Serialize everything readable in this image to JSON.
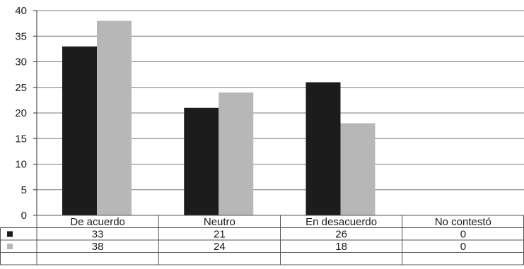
{
  "chart_data": {
    "type": "bar",
    "categories": [
      "De acuerdo",
      "Neutro",
      "En desacuerdo",
      "No contestó"
    ],
    "series": [
      {
        "values": [
          33,
          21,
          26,
          0
        ],
        "color": "#1c1c1c"
      },
      {
        "values": [
          38,
          24,
          18,
          0
        ],
        "color": "#b7b7b7"
      }
    ],
    "ylim": [
      0,
      40
    ],
    "yticks": [
      0,
      5,
      10,
      15,
      20,
      25,
      30,
      35,
      40
    ],
    "grid": true,
    "data_table": true,
    "legend": "data-table-left"
  }
}
